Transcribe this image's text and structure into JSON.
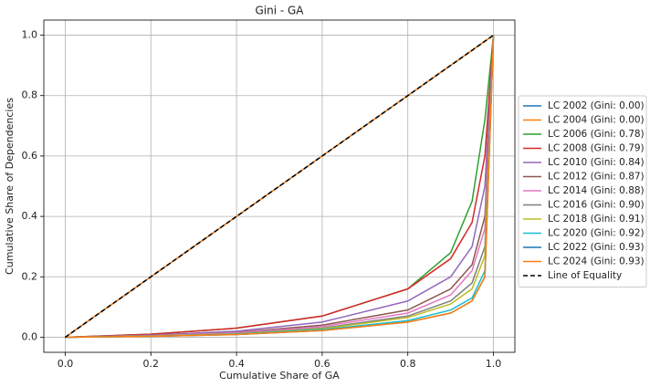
{
  "chart_data": {
    "type": "line",
    "title": "Gini - GA",
    "x_label": "Cumulative Share of GA",
    "y_label": "Cumulative Share of Dependencies",
    "x": [
      0,
      0.2,
      0.4,
      0.6,
      0.8,
      0.9,
      0.95,
      0.98,
      1.0
    ],
    "xlim": [
      -0.05,
      1.05
    ],
    "ylim": [
      -0.05,
      1.05
    ],
    "xticks": [
      {
        "value": 0,
        "label": "0.0"
      },
      {
        "value": 0.2,
        "label": "0.2"
      },
      {
        "value": 0.4,
        "label": "0.4"
      },
      {
        "value": 0.6,
        "label": "0.6"
      },
      {
        "value": 0.8,
        "label": "0.8"
      },
      {
        "value": 1,
        "label": "1.0"
      }
    ],
    "yticks": [
      {
        "value": 0,
        "label": "0.0"
      },
      {
        "value": 0.2,
        "label": "0.2"
      },
      {
        "value": 0.4,
        "label": "0.4"
      },
      {
        "value": 0.6,
        "label": "0.6"
      },
      {
        "value": 0.8,
        "label": "0.8"
      },
      {
        "value": 1,
        "label": "1.0"
      }
    ],
    "grid": true,
    "legend": "outside-right",
    "series": [
      {
        "name": "LC 2002 (Gini: 0.00)",
        "color": "#1f77b4",
        "values": [
          0,
          0.2,
          0.4,
          0.6,
          0.8,
          0.9,
          0.95,
          0.98,
          1.0
        ]
      },
      {
        "name": "LC 2004 (Gini: 0.00)",
        "color": "#ff7f0e",
        "values": [
          0,
          0.2,
          0.4,
          0.6,
          0.8,
          0.9,
          0.95,
          0.98,
          1.0
        ]
      },
      {
        "name": "LC 2006 (Gini: 0.78)",
        "color": "#2ca02c",
        "values": [
          0,
          0.01,
          0.03,
          0.07,
          0.16,
          0.28,
          0.45,
          0.72,
          1.0
        ]
      },
      {
        "name": "LC 2008 (Gini: 0.79)",
        "color": "#d62728",
        "values": [
          0,
          0.01,
          0.03,
          0.07,
          0.16,
          0.26,
          0.38,
          0.6,
          1.0
        ]
      },
      {
        "name": "LC 2010 (Gini: 0.84)",
        "color": "#9467bd",
        "values": [
          0,
          0.007,
          0.02,
          0.05,
          0.12,
          0.2,
          0.3,
          0.5,
          1.0
        ]
      },
      {
        "name": "LC 2012 (Gini: 0.87)",
        "color": "#8c564b",
        "values": [
          0,
          0.005,
          0.016,
          0.04,
          0.09,
          0.16,
          0.24,
          0.4,
          1.0
        ]
      },
      {
        "name": "LC 2014 (Gini: 0.88)",
        "color": "#e377c2",
        "values": [
          0,
          0.005,
          0.015,
          0.035,
          0.08,
          0.14,
          0.22,
          0.36,
          1.0
        ]
      },
      {
        "name": "LC 2016 (Gini: 0.90)",
        "color": "#7f7f7f",
        "values": [
          0,
          0.004,
          0.012,
          0.03,
          0.07,
          0.12,
          0.18,
          0.3,
          1.0
        ]
      },
      {
        "name": "LC 2018 (Gini: 0.91)",
        "color": "#bcbd22",
        "values": [
          0,
          0.004,
          0.011,
          0.028,
          0.065,
          0.11,
          0.16,
          0.27,
          1.0
        ]
      },
      {
        "name": "LC 2020 (Gini: 0.92)",
        "color": "#17becf",
        "values": [
          0,
          0.003,
          0.01,
          0.025,
          0.055,
          0.09,
          0.13,
          0.22,
          1.0
        ]
      },
      {
        "name": "LC 2022 (Gini: 0.93)",
        "color": "#1f77b4",
        "values": [
          0,
          0.003,
          0.009,
          0.022,
          0.05,
          0.08,
          0.12,
          0.2,
          1.0
        ]
      },
      {
        "name": "LC 2024 (Gini: 0.93)",
        "color": "#ff7f0e",
        "values": [
          0,
          0.003,
          0.009,
          0.022,
          0.05,
          0.08,
          0.12,
          0.2,
          1.0
        ]
      },
      {
        "name": "Line of Equality",
        "color": "#000000",
        "linestyle": "dashed",
        "values": [
          0,
          0.2,
          0.4,
          0.6,
          0.8,
          0.9,
          0.95,
          0.98,
          1.0
        ]
      }
    ]
  }
}
